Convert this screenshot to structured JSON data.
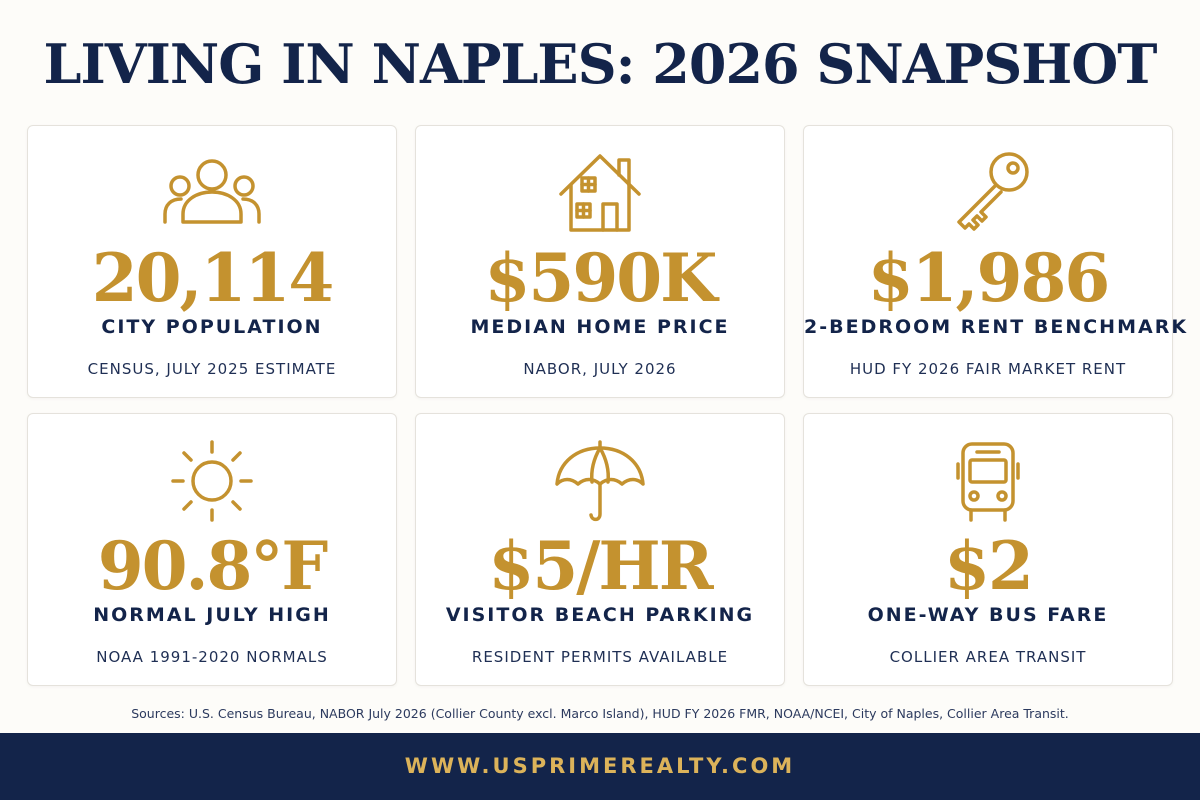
{
  "title": "LIVING IN NAPLES: 2026 SNAPSHOT",
  "colors": {
    "navy": "#13244a",
    "gold": "#c4922f",
    "background": "#fdfcf9"
  },
  "cards": [
    {
      "icon": "people-icon",
      "value": "20,114",
      "label": "CITY POPULATION",
      "source": "CENSUS, JULY 2025 ESTIMATE"
    },
    {
      "icon": "house-icon",
      "value": "$590K",
      "label": "MEDIAN HOME PRICE",
      "source": "NABOR, JULY 2026"
    },
    {
      "icon": "key-icon",
      "value": "$1,986",
      "label": "2-BEDROOM RENT BENCHMARK",
      "source": "HUD FY 2026 FAIR MARKET RENT"
    },
    {
      "icon": "sun-icon",
      "value": "90.8°F",
      "label": "NORMAL JULY HIGH",
      "source": "NOAA 1991-2020 NORMALS"
    },
    {
      "icon": "umbrella-icon",
      "value": "$5/HR",
      "label": "VISITOR BEACH PARKING",
      "source": "RESIDENT PERMITS AVAILABLE"
    },
    {
      "icon": "bus-icon",
      "value": "$2",
      "label": "ONE-WAY BUS FARE",
      "source": "COLLIER AREA TRANSIT"
    }
  ],
  "footnote": "Sources: U.S. Census Bureau, NABOR July 2026 (Collier County excl. Marco Island), HUD FY 2026 FMR, NOAA/NCEI, City of Naples, Collier Area Transit.",
  "footer": {
    "url": "WWW.USPRIMEREALTY.COM"
  }
}
